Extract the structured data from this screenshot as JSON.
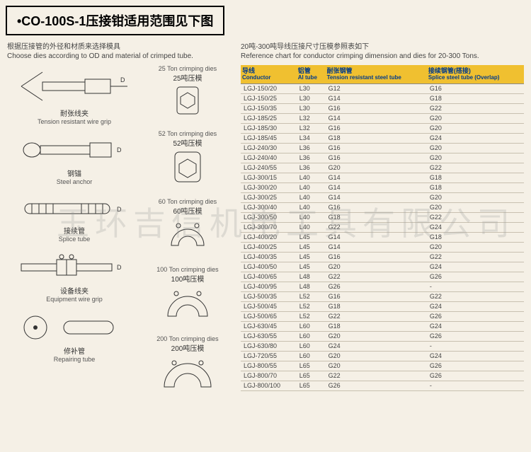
{
  "title": "•CO-100S-1压接钳适用范围见下图",
  "left": {
    "head_cn": "根据压接管的外径和材质来选择模具",
    "head_en": "Choose dies according to OD and material of crimped tube.",
    "items": [
      {
        "cn": "耐张线夹",
        "en": "Tension resistant wire grip"
      },
      {
        "cn": "钢锚",
        "en": "Steel anchor"
      },
      {
        "cn": "接续管",
        "en": "Splice tube"
      },
      {
        "cn": "设备线夹",
        "en": "Equipment wire grip"
      },
      {
        "cn": "修补管",
        "en": "Repairing tube"
      }
    ],
    "dies": [
      {
        "en": "25 Ton crimping dies",
        "cn": "25吨压模"
      },
      {
        "en": "52 Ton crimping dies",
        "cn": "52吨压模"
      },
      {
        "en": "60 Ton crimping dies",
        "cn": "60吨压模"
      },
      {
        "en": "100 Ton crimping dies",
        "cn": "100吨压模"
      },
      {
        "en": "200 Ton crimping dies",
        "cn": "200吨压模"
      }
    ]
  },
  "right": {
    "head_cn": "20吨-300吨导线压接尺寸压模参照表如下",
    "head_en": "Reference chart for conductor crimping dimension and dies for 20-300 Tons.",
    "columns": [
      {
        "cn": "导线",
        "en": "Conductor"
      },
      {
        "cn": "铝管",
        "en": "Al tube"
      },
      {
        "cn": "耐张钢管",
        "en": "Tension resistant steel tube"
      },
      {
        "cn": "接续钢管(搭接)",
        "en": "Splice steel tube (Overlap)"
      }
    ],
    "rows": [
      [
        "LGJ-150/20",
        "L30",
        "G12",
        "G16"
      ],
      [
        "LGJ-150/25",
        "L30",
        "G14",
        "G18"
      ],
      [
        "LGJ-150/35",
        "L30",
        "G16",
        "G22"
      ],
      [
        "LGJ-185/25",
        "L32",
        "G14",
        "G20"
      ],
      [
        "LGJ-185/30",
        "L32",
        "G16",
        "G20"
      ],
      [
        "LGJ-185/45",
        "L34",
        "G18",
        "G24"
      ],
      [
        "LGJ-240/30",
        "L36",
        "G16",
        "G20"
      ],
      [
        "LGJ-240/40",
        "L36",
        "G16",
        "G20"
      ],
      [
        "LGJ-240/55",
        "L36",
        "G20",
        "G22"
      ],
      [
        "LGJ-300/15",
        "L40",
        "G14",
        "G18"
      ],
      [
        "LGJ-300/20",
        "L40",
        "G14",
        "G18"
      ],
      [
        "LGJ-300/25",
        "L40",
        "G14",
        "G20"
      ],
      [
        "LGJ-300/40",
        "L40",
        "G16",
        "G20"
      ],
      [
        "LGJ-300/50",
        "L40",
        "G18",
        "G22"
      ],
      [
        "LGJ-300/70",
        "L40",
        "G22",
        "G24"
      ],
      [
        "LGJ-400/20",
        "L45",
        "G14",
        "G18"
      ],
      [
        "LGJ-400/25",
        "L45",
        "G14",
        "G20"
      ],
      [
        "LGJ-400/35",
        "L45",
        "G16",
        "G22"
      ],
      [
        "LGJ-400/50",
        "L45",
        "G20",
        "G24"
      ],
      [
        "LGJ-400/65",
        "L48",
        "G22",
        "G26"
      ],
      [
        "LGJ-400/95",
        "L48",
        "G26",
        "-"
      ],
      [
        "LGJ-500/35",
        "L52",
        "G16",
        "G22"
      ],
      [
        "LGJ-500/45",
        "L52",
        "G18",
        "G24"
      ],
      [
        "LGJ-500/65",
        "L52",
        "G22",
        "G26"
      ],
      [
        "LGJ-630/45",
        "L60",
        "G18",
        "G24"
      ],
      [
        "LGJ-630/55",
        "L60",
        "G20",
        "G26"
      ],
      [
        "LGJ-630/80",
        "L60",
        "G24",
        "-"
      ],
      [
        "LGJ-720/55",
        "L60",
        "G20",
        "G24"
      ],
      [
        "LGJ-800/55",
        "L65",
        "G20",
        "G26"
      ],
      [
        "LGJ-800/70",
        "L65",
        "G22",
        "G26"
      ],
      [
        "LGJ-800/100",
        "L65",
        "G26",
        "-"
      ]
    ]
  },
  "watermark": "玉环吉信机电工具有限公司",
  "colors": {
    "background": "#f5f0e6",
    "header_bg": "#f0c030",
    "header_text": "#003a8c",
    "row_border": "#c8c0b0"
  }
}
